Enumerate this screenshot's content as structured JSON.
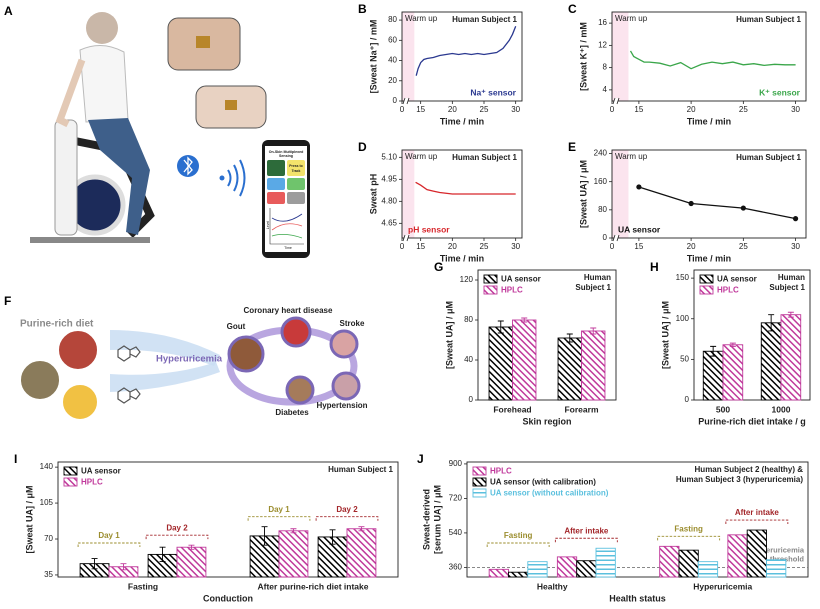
{
  "illustrations": {
    "a": {
      "panel": "A",
      "app_title": [
        "On-Skin Multiplexed",
        "Sensing"
      ],
      "button": [
        "Press to",
        "Track"
      ],
      "plot_x": "Time",
      "plot_y": "Level"
    },
    "f": {
      "panel": "F",
      "diet": "Purine-rich diet",
      "condition": "Hyperuricemia",
      "diseases": [
        "Coronary heart disease",
        "Gout",
        "Stroke",
        "Diabetes",
        "Hypertension"
      ]
    }
  },
  "chart_data": [
    {
      "panel": "B",
      "type": "line",
      "ylabel": "[Sweat Na⁺] / mM",
      "xlabel": "Time / min",
      "annotation": [
        "Human Subject 1"
      ],
      "shaded_region": {
        "label": "Warm up",
        "x": [
          0,
          14
        ]
      },
      "shade_color": "#fbe4ee",
      "xlim": [
        0,
        31
      ],
      "xbreak": [
        1,
        13
      ],
      "xticks": [
        0,
        15,
        20,
        25,
        30
      ],
      "ylim": [
        0,
        88
      ],
      "yticks": [
        0,
        20,
        40,
        60,
        80
      ],
      "label_corner": "lower right",
      "series": [
        {
          "name": "Na⁺ sensor",
          "color": "#2b3990",
          "markers": false,
          "x": [
            14.3,
            14.6,
            15,
            15.5,
            16,
            17,
            18,
            19,
            20,
            21,
            22,
            23,
            24,
            25,
            26,
            27,
            28,
            29,
            29.5,
            30
          ],
          "values": [
            25,
            32,
            38,
            41,
            42,
            43,
            45,
            46,
            47,
            46,
            47,
            46,
            47,
            46,
            47,
            48,
            52,
            60,
            66,
            74
          ]
        }
      ]
    },
    {
      "panel": "C",
      "type": "line",
      "ylabel": "[Sweat K⁺] / mM",
      "xlabel": "Time / min",
      "annotation": [
        "Human Subject 1"
      ],
      "shaded_region": {
        "label": "Warm up",
        "x": [
          0,
          14
        ]
      },
      "shade_color": "#fbe4ee",
      "xlim": [
        0,
        31
      ],
      "xbreak": [
        1,
        13
      ],
      "xticks": [
        0,
        15,
        20,
        25,
        30
      ],
      "ylim": [
        2,
        18
      ],
      "yticks": [
        4,
        8,
        12,
        16
      ],
      "label_corner": "lower right",
      "series": [
        {
          "name": "K⁺ sensor",
          "color": "#3aa64a",
          "markers": false,
          "x": [
            14.2,
            14.5,
            15,
            15.5,
            16,
            17,
            18,
            19,
            20,
            21,
            22,
            23,
            24,
            25,
            26,
            27,
            28,
            29,
            30
          ],
          "values": [
            11,
            10,
            9.5,
            9,
            9,
            8.8,
            8.3,
            8.9,
            7.8,
            8.6,
            9,
            8.7,
            9,
            8.5,
            8.7,
            8.4,
            8.6,
            8.5,
            8.5
          ]
        }
      ]
    },
    {
      "panel": "D",
      "type": "line",
      "ylabel": "Sweat pH",
      "xlabel": "Time / min",
      "annotation": [
        "Human Subject 1"
      ],
      "shaded_region": {
        "label": "Warm up",
        "x": [
          0,
          14
        ]
      },
      "shade_color": "#fbe4ee",
      "xlim": [
        0,
        31
      ],
      "xbreak": [
        1,
        13
      ],
      "xticks": [
        0,
        15,
        20,
        25,
        30
      ],
      "ylim": [
        4.55,
        5.15
      ],
      "yticks": [
        4.65,
        {
          "value": 4.8,
          "label": "4.80"
        },
        4.95,
        {
          "value": 5.1,
          "label": "5.10"
        }
      ],
      "label_corner": "lower left",
      "series": [
        {
          "name": "pH sensor",
          "color": "#d7262b",
          "markers": false,
          "x": [
            14.2,
            15,
            16,
            17,
            18,
            20,
            22,
            24,
            26,
            28,
            30
          ],
          "values": [
            4.93,
            4.91,
            4.88,
            4.87,
            4.86,
            4.85,
            4.85,
            4.85,
            4.85,
            4.85,
            4.85
          ]
        }
      ]
    },
    {
      "panel": "E",
      "type": "line",
      "ylabel": "[Sweat UA] / μM",
      "xlabel": "Time / min",
      "annotation": [
        "Human Subject 1"
      ],
      "shaded_region": {
        "label": "Warm up",
        "x": [
          0,
          14
        ]
      },
      "shade_color": "#fbe4ee",
      "xlim": [
        0,
        31
      ],
      "xbreak": [
        1,
        13
      ],
      "xticks": [
        0,
        15,
        20,
        25,
        30
      ],
      "ylim": [
        0,
        250
      ],
      "yticks": [
        0,
        80,
        160,
        240
      ],
      "label_corner": "lower left",
      "series": [
        {
          "name": "UA sensor",
          "color": "#111111",
          "markers": true,
          "x": [
            15,
            20,
            25,
            30
          ],
          "values": [
            145,
            98,
            85,
            55
          ]
        }
      ]
    },
    {
      "panel": "G",
      "type": "bar",
      "ylabel": "[Sweat UA] / μM",
      "xlabel": "Skin region",
      "annotation": [
        "Human",
        "Subject 1"
      ],
      "categories": [
        "Forehead",
        "Forearm"
      ],
      "ylim": [
        0,
        130
      ],
      "yticks": [
        0,
        40,
        80,
        120
      ],
      "legend": "upper left",
      "series": [
        {
          "name": "UA sensor",
          "color": "#000000",
          "hatch": "diagonal",
          "values": [
            73,
            62
          ],
          "errors": [
            6,
            4
          ]
        },
        {
          "name": "HPLC",
          "color": "#c0399b",
          "hatch": "diagonal",
          "values": [
            80,
            69
          ],
          "errors": [
            2,
            3
          ]
        }
      ]
    },
    {
      "panel": "H",
      "type": "bar",
      "ylabel": "[Sweat UA] / μM",
      "xlabel": "Purine-rich diet intake / g",
      "annotation": [
        "Human",
        "Subject 1"
      ],
      "categories": [
        "500",
        "1000"
      ],
      "ylim": [
        0,
        160
      ],
      "yticks": [
        0,
        50,
        100,
        150
      ],
      "legend": "upper left",
      "series": [
        {
          "name": "UA sensor",
          "color": "#000000",
          "hatch": "diagonal",
          "values": [
            60,
            95
          ],
          "errors": [
            6,
            10
          ]
        },
        {
          "name": "HPLC",
          "color": "#c0399b",
          "hatch": "diagonal",
          "values": [
            68,
            105
          ],
          "errors": [
            2,
            3
          ]
        }
      ]
    },
    {
      "panel": "I",
      "type": "bar",
      "ylabel": "[Sweat UA] / μM",
      "xlabel": "Conduction",
      "annotation": [
        "Human Subject 1"
      ],
      "categories": [
        "Fasting",
        "After purine-rich diet intake"
      ],
      "brackets": [
        [
          "Day 1",
          "Day 2"
        ],
        [
          "Day 1",
          "Day 2"
        ]
      ],
      "bracket_colors": [
        "#9b8d2e",
        "#a3262a"
      ],
      "ylim": [
        33,
        145
      ],
      "yticks": [
        35,
        70,
        105,
        140
      ],
      "legend": "upper left",
      "series": [
        {
          "name": "UA sensor",
          "color": "#000000",
          "hatch": "diagonal",
          "values": [
            [
              46,
              55
            ],
            [
              73,
              72
            ]
          ],
          "errors": [
            [
              5,
              7
            ],
            [
              9,
              7
            ]
          ]
        },
        {
          "name": "HPLC",
          "color": "#c0399b",
          "hatch": "diagonal",
          "values": [
            [
              43,
              62
            ],
            [
              78,
              80
            ]
          ],
          "errors": [
            [
              3,
              2
            ],
            [
              2,
              2
            ]
          ]
        }
      ]
    },
    {
      "panel": "J",
      "type": "bar",
      "ylabel": [
        "Sweat-derived",
        "[serum UA] / μM"
      ],
      "xlabel": "Health status",
      "annotation": [
        "Human Subject 2 (healthy) &",
        "Human Subject 3 (hyperuricemia)"
      ],
      "categories": [
        "Healthy",
        "Hyperuricemia"
      ],
      "brackets": [
        [
          "Fasting",
          "After intake"
        ],
        [
          "Fasting",
          "After intake"
        ]
      ],
      "bracket_colors": [
        "#9b8d2e",
        "#a3262a"
      ],
      "threshold": {
        "value": 360,
        "label": [
          "Hyperuricemia",
          "threshold"
        ]
      },
      "ylim": [
        310,
        910
      ],
      "yticks": [
        360,
        540,
        720,
        900
      ],
      "legend": "upper left",
      "series": [
        {
          "name": "HPLC",
          "color": "#c0399b",
          "hatch": "diagonal",
          "values": [
            [
              350,
              415
            ],
            [
              470,
              530
            ]
          ]
        },
        {
          "name": "UA sensor (with calibration)",
          "color": "#000000",
          "hatch": "diagonal",
          "values": [
            [
              335,
              395
            ],
            [
              450,
              555
            ]
          ]
        },
        {
          "name": "UA sensor (without calibration)",
          "color": "#5bc0de",
          "hatch": "horizontal",
          "values": [
            [
              390,
              460
            ],
            [
              390,
              400
            ]
          ]
        }
      ]
    }
  ]
}
